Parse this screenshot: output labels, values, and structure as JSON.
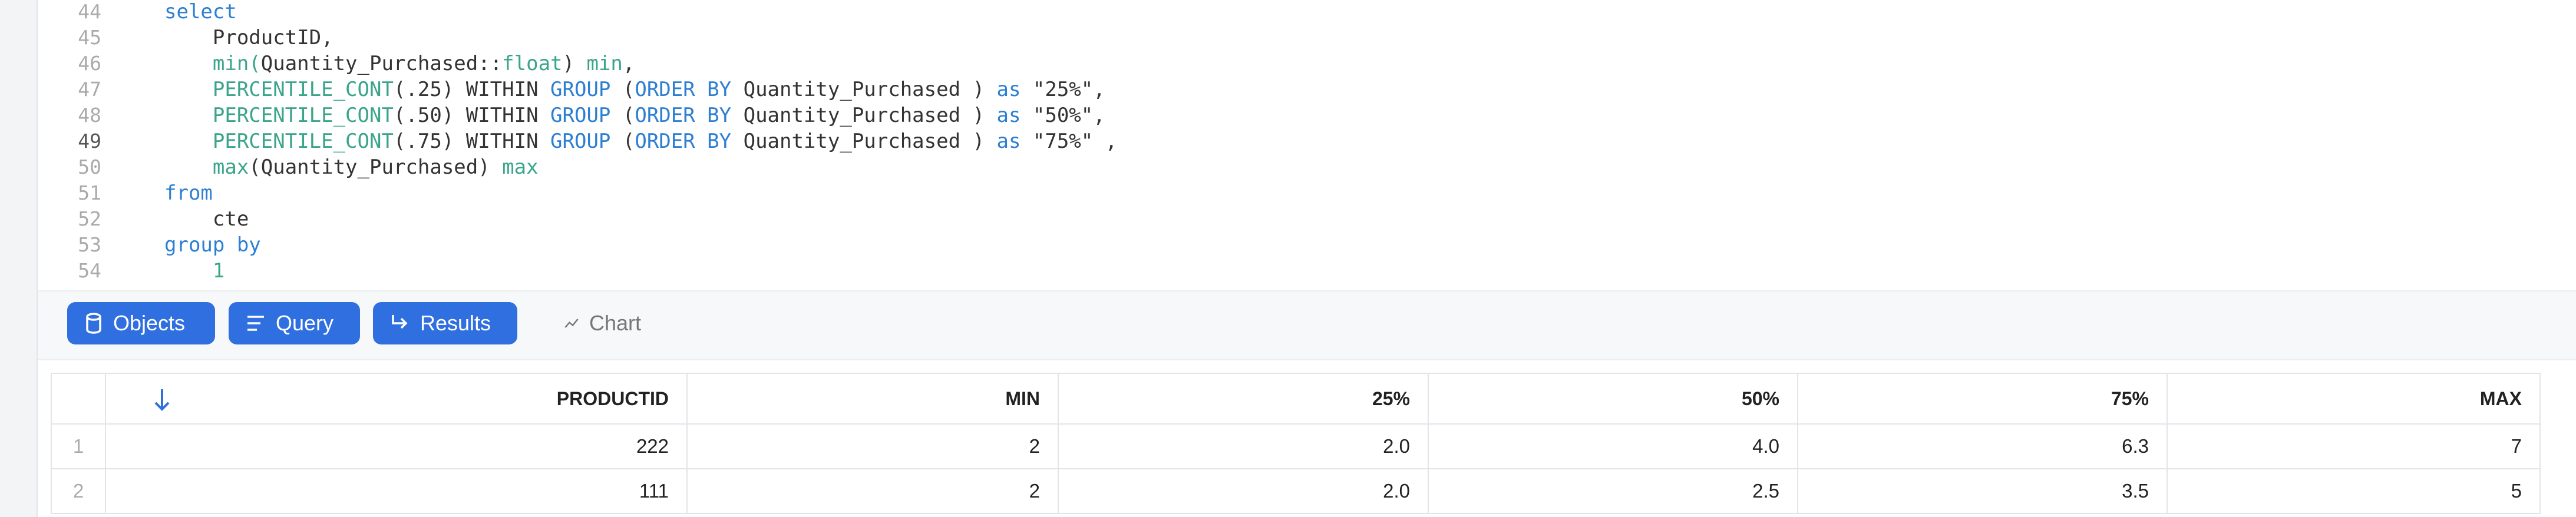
{
  "editor": {
    "lines": [
      {
        "number": "44",
        "tokens": [
          {
            "text": "select",
            "color": "#2d7fd2"
          }
        ]
      },
      {
        "number": "45",
        "tokens": [
          {
            "text": "    ProductID,",
            "color": "#333333"
          }
        ]
      },
      {
        "number": "46",
        "tokens": [
          {
            "text": "    min(",
            "color": "#3aa58a"
          },
          {
            "text": "Quantity_Purchased::",
            "color": "#333333"
          },
          {
            "text": "float",
            "color": "#3aa58a"
          },
          {
            "text": ") ",
            "color": "#333333"
          },
          {
            "text": "min",
            "color": "#3aa58a"
          },
          {
            "text": ",",
            "color": "#333333"
          }
        ]
      },
      {
        "number": "47",
        "tokens": [
          {
            "text": "    PERCENTILE_CONT",
            "color": "#3aa58a"
          },
          {
            "text": "(.25) WITHIN ",
            "color": "#333333"
          },
          {
            "text": "GROUP",
            "color": "#2d7fd2"
          },
          {
            "text": " (",
            "color": "#333333"
          },
          {
            "text": "ORDER BY",
            "color": "#2d7fd2"
          },
          {
            "text": " Quantity_Purchased ) ",
            "color": "#333333"
          },
          {
            "text": "as",
            "color": "#2d7fd2"
          },
          {
            "text": " \"25%\",",
            "color": "#333333"
          }
        ]
      },
      {
        "number": "48",
        "tokens": [
          {
            "text": "    PERCENTILE_CONT",
            "color": "#3aa58a"
          },
          {
            "text": "(.50) WITHIN ",
            "color": "#333333"
          },
          {
            "text": "GROUP",
            "color": "#2d7fd2"
          },
          {
            "text": " (",
            "color": "#333333"
          },
          {
            "text": "ORDER BY",
            "color": "#2d7fd2"
          },
          {
            "text": " Quantity_Purchased ) ",
            "color": "#333333"
          },
          {
            "text": "as",
            "color": "#2d7fd2"
          },
          {
            "text": " \"50%\",",
            "color": "#333333"
          }
        ]
      },
      {
        "number": "49",
        "tokens": [
          {
            "text": "    PERCENTILE_CONT",
            "color": "#3aa58a"
          },
          {
            "text": "(.75) WITHIN ",
            "color": "#333333"
          },
          {
            "text": "GROUP",
            "color": "#2d7fd2"
          },
          {
            "text": " (",
            "color": "#333333"
          },
          {
            "text": "ORDER BY",
            "color": "#2d7fd2"
          },
          {
            "text": " Quantity_Purchased ) ",
            "color": "#333333"
          },
          {
            "text": "as",
            "color": "#2d7fd2"
          },
          {
            "text": " \"75%\" ,",
            "color": "#333333"
          }
        ]
      },
      {
        "number": "50",
        "tokens": [
          {
            "text": "    max",
            "color": "#3aa58a"
          },
          {
            "text": "(Quantity_Purchased) ",
            "color": "#333333"
          },
          {
            "text": "max",
            "color": "#3aa58a"
          }
        ]
      },
      {
        "number": "51",
        "tokens": [
          {
            "text": "from",
            "color": "#2d7fd2"
          }
        ]
      },
      {
        "number": "52",
        "tokens": [
          {
            "text": "    cte",
            "color": "#333333"
          }
        ]
      },
      {
        "number": "53",
        "tokens": [
          {
            "text": "group by",
            "color": "#2d7fd2"
          }
        ]
      },
      {
        "number": "54",
        "tokens": [
          {
            "text": "    1",
            "color": "#3aa58a"
          }
        ]
      }
    ]
  },
  "toolbar": {
    "buttons": [
      "Objects",
      "Query",
      "Results",
      "Chart"
    ]
  },
  "table": {
    "columns": [
      "PRODUCTID",
      "MIN",
      "25%",
      "50%",
      "75%",
      "MAX"
    ],
    "rows": [
      [
        "1",
        "222",
        "2",
        "2.0",
        "4.0",
        "6.3",
        "7"
      ],
      [
        "2",
        "111",
        "2",
        "2.0",
        "2.5",
        "3.5",
        "5"
      ]
    ]
  }
}
